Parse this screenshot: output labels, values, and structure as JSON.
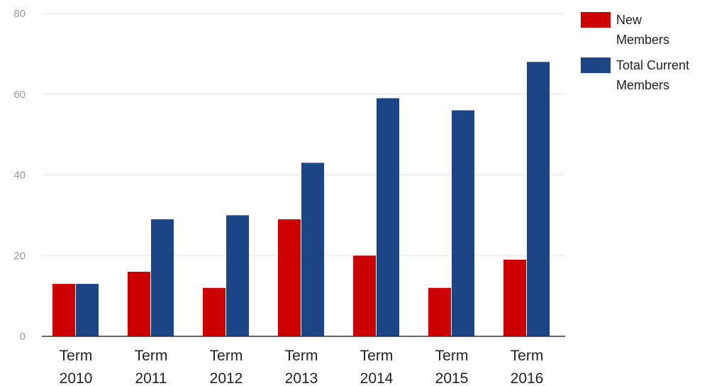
{
  "chart_data": {
    "type": "bar",
    "title": "",
    "xlabel": "",
    "ylabel": "",
    "ylim": [
      0,
      80
    ],
    "yticks": [
      0,
      20,
      40,
      60,
      80
    ],
    "grid": true,
    "legend_position": "right",
    "categories": [
      [
        "Term",
        "2010"
      ],
      [
        "Term",
        "2011"
      ],
      [
        "Term",
        "2012"
      ],
      [
        "Term",
        "2013"
      ],
      [
        "Term",
        "2014"
      ],
      [
        "Term",
        "2015"
      ],
      [
        "Term",
        "2016"
      ]
    ],
    "series": [
      {
        "name": [
          "New",
          "Members"
        ],
        "color": "#cc0000",
        "values": [
          13,
          16,
          12,
          29,
          20,
          12,
          19
        ]
      },
      {
        "name": [
          "Total Current",
          "Members"
        ],
        "color": "#1c4587",
        "values": [
          13,
          29,
          30,
          43,
          59,
          56,
          68
        ]
      }
    ]
  }
}
